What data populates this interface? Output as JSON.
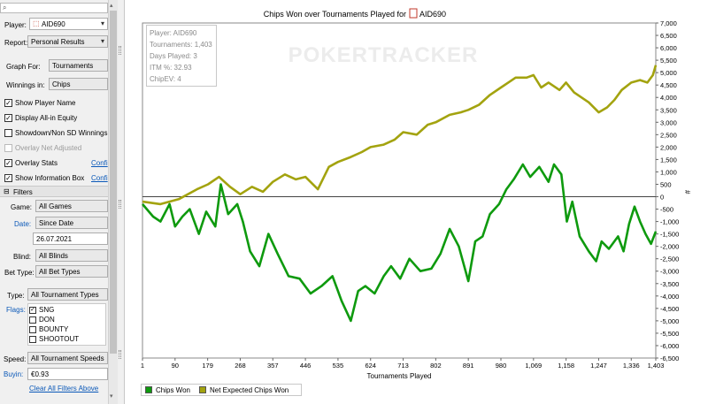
{
  "sidebar": {
    "search": {
      "icon": "search-icon",
      "value": ""
    },
    "player": {
      "label": "Player:",
      "value": "AID690",
      "icon": "player-icon"
    },
    "report": {
      "label": "Report:",
      "value": "Personal Results"
    },
    "graph_for": {
      "label": "Graph For:",
      "value": "Tournaments"
    },
    "winnings_in": {
      "label": "Winnings in:",
      "value": "Chips"
    },
    "options": [
      {
        "label": "Show Player Name",
        "checked": true,
        "enabled": true
      },
      {
        "label": "Display All-in Equity",
        "checked": true,
        "enabled": true
      },
      {
        "label": "Showdown/Non SD Winnings",
        "checked": false,
        "enabled": true
      },
      {
        "label": "Overlay Net Adjusted",
        "checked": false,
        "enabled": false
      },
      {
        "label": "Overlay Stats",
        "checked": true,
        "enabled": true,
        "link": "Confi"
      },
      {
        "label": "Show Information Box",
        "checked": true,
        "enabled": true,
        "link": "Confi"
      }
    ],
    "filters": {
      "header": "Filters",
      "game": {
        "label": "Game:",
        "value": "All Games"
      },
      "date": {
        "label": "Date:",
        "value": "Since Date",
        "date_value": "26.07.2021"
      },
      "blind": {
        "label": "Blind:",
        "value": "All Blinds"
      },
      "bet_type": {
        "label": "Bet Type:",
        "value": "All Bet Types"
      },
      "type": {
        "label": "Type:",
        "value": "All Tournament Types"
      },
      "flags": {
        "label": "Flags:",
        "items": [
          {
            "label": "SNG",
            "checked": true
          },
          {
            "label": "DON",
            "checked": false
          },
          {
            "label": "BOUNTY",
            "checked": false
          },
          {
            "label": "SHOOTOUT",
            "checked": false
          }
        ]
      },
      "speed": {
        "label": "Speed:",
        "value": "All Tournament Speeds"
      },
      "buyin": {
        "label": "Buyin:",
        "value": "€0.93"
      },
      "clear_link": "Clear All Filters Above"
    }
  },
  "chart_info": {
    "lines": [
      "Player: AID690",
      "Tournaments: 1,403",
      "Days Played: 3",
      "ITM %: 32.93",
      "ChipEV: 4"
    ],
    "watermark": "POKERTRACKER"
  },
  "chart_data": {
    "type": "line",
    "title": "Chips Won over Tournaments Played for",
    "title_player": "AID690",
    "xlabel": "Tournaments Played",
    "ylabel": "",
    "y_axis_symbol": "#",
    "xlim": [
      1,
      1403
    ],
    "ylim": [
      -6500,
      7000
    ],
    "x_ticks": [
      1,
      90,
      179,
      268,
      357,
      446,
      535,
      624,
      713,
      802,
      891,
      980,
      1069,
      1158,
      1247,
      1336,
      1403
    ],
    "y_ticks": [
      -6500,
      -6000,
      -5500,
      -5000,
      -4500,
      -4000,
      -3500,
      -3000,
      -2500,
      -2000,
      -1500,
      -1000,
      -500,
      0,
      500,
      1000,
      1500,
      2000,
      2500,
      3000,
      3500,
      4000,
      4500,
      5000,
      5500,
      6000,
      6500,
      7000
    ],
    "colors": {
      "chips_won": "#0e9a0e",
      "net_expected": "#a3a30f"
    },
    "series": [
      {
        "name": "Chips Won",
        "x": [
          1,
          30,
          50,
          75,
          90,
          110,
          130,
          155,
          175,
          200,
          215,
          235,
          260,
          275,
          295,
          320,
          345,
          370,
          400,
          430,
          460,
          490,
          520,
          545,
          570,
          590,
          610,
          635,
          660,
          680,
          705,
          730,
          760,
          790,
          815,
          840,
          865,
          891,
          910,
          930,
          950,
          975,
          995,
          1015,
          1040,
          1060,
          1085,
          1110,
          1125,
          1145,
          1160,
          1175,
          1195,
          1220,
          1240,
          1255,
          1275,
          1300,
          1315,
          1330,
          1345,
          1360,
          1375,
          1390,
          1403
        ],
        "values": [
          -300,
          -800,
          -1000,
          -300,
          -1200,
          -800,
          -500,
          -1500,
          -600,
          -1200,
          500,
          -700,
          -300,
          -1000,
          -2200,
          -2800,
          -1500,
          -2300,
          -3200,
          -3300,
          -3900,
          -3600,
          -3200,
          -4200,
          -5000,
          -3800,
          -3600,
          -3900,
          -3200,
          -2800,
          -3300,
          -2500,
          -3000,
          -2900,
          -2300,
          -1300,
          -2000,
          -3400,
          -1800,
          -1600,
          -700,
          -300,
          300,
          700,
          1300,
          800,
          1200,
          600,
          1300,
          900,
          -1000,
          -200,
          -1600,
          -2200,
          -2600,
          -1800,
          -2100,
          -1600,
          -2200,
          -1100,
          -400,
          -1000,
          -1500,
          -1900,
          -1400
        ]
      },
      {
        "name": "Net Expected Chips Won",
        "x": [
          1,
          50,
          100,
          150,
          180,
          210,
          240,
          268,
          300,
          330,
          357,
          390,
          420,
          446,
          480,
          510,
          535,
          570,
          600,
          624,
          660,
          690,
          713,
          750,
          780,
          802,
          840,
          870,
          891,
          920,
          950,
          980,
          1000,
          1020,
          1050,
          1069,
          1090,
          1110,
          1140,
          1158,
          1180,
          1200,
          1220,
          1247,
          1270,
          1290,
          1310,
          1336,
          1360,
          1380,
          1395,
          1403
        ],
        "values": [
          -200,
          -300,
          -100,
          300,
          500,
          800,
          400,
          100,
          400,
          200,
          600,
          900,
          700,
          800,
          300,
          1200,
          1400,
          1600,
          1800,
          2000,
          2100,
          2300,
          2600,
          2500,
          2900,
          3000,
          3300,
          3400,
          3500,
          3700,
          4100,
          4400,
          4600,
          4800,
          4800,
          4900,
          4400,
          4600,
          4300,
          4600,
          4200,
          4000,
          3800,
          3400,
          3600,
          3900,
          4300,
          4600,
          4700,
          4600,
          4900,
          5300
        ]
      }
    ],
    "legend_position": "bottom-left",
    "grid": false
  }
}
